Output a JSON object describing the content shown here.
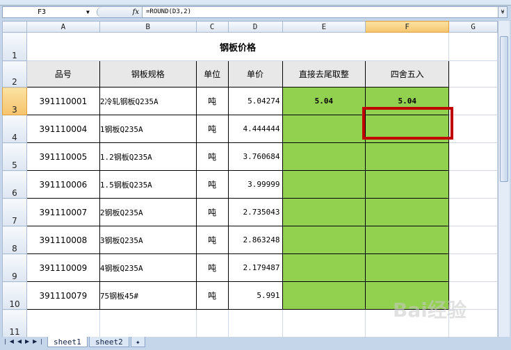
{
  "formula_bar": {
    "name_box": "F3",
    "fx": "fx",
    "formula": "=ROUND(D3,2)"
  },
  "columns": [
    "A",
    "B",
    "C",
    "D",
    "E",
    "F",
    "G"
  ],
  "selected_column": "F",
  "selected_row": "3",
  "rows": [
    "1",
    "2",
    "3",
    "4",
    "5",
    "6",
    "7",
    "8",
    "9",
    "10",
    "11"
  ],
  "title": "钢板价格",
  "headers": [
    "品号",
    "钢板规格",
    "单位",
    "单价",
    "直接去尾取整",
    "四舍五入"
  ],
  "data": [
    [
      "391110001",
      "2冷轧钢板Q235A",
      "吨",
      "5.04274",
      "5.04",
      "5.04"
    ],
    [
      "391110004",
      "1钢板Q235A",
      "吨",
      "4.444444",
      "",
      ""
    ],
    [
      "391110005",
      "1.2钢板Q235A",
      "吨",
      "3.760684",
      "",
      ""
    ],
    [
      "391110006",
      "1.5钢板Q235A",
      "吨",
      "3.99999",
      "",
      ""
    ],
    [
      "391110007",
      "2钢板Q235A",
      "吨",
      "2.735043",
      "",
      ""
    ],
    [
      "391110008",
      "3钢板Q235A",
      "吨",
      "2.863248",
      "",
      ""
    ],
    [
      "391110009",
      "4钢板Q235A",
      "吨",
      "2.179487",
      "",
      ""
    ],
    [
      "391110079",
      "75钢板45#",
      "吨",
      "5.991",
      "",
      ""
    ]
  ],
  "fill_color": "#92d050",
  "highlight_color": "#c00000",
  "sheets": [
    "sheet1",
    "sheet2"
  ],
  "watermark": "Baidu经验 jingyan.baidu.com"
}
